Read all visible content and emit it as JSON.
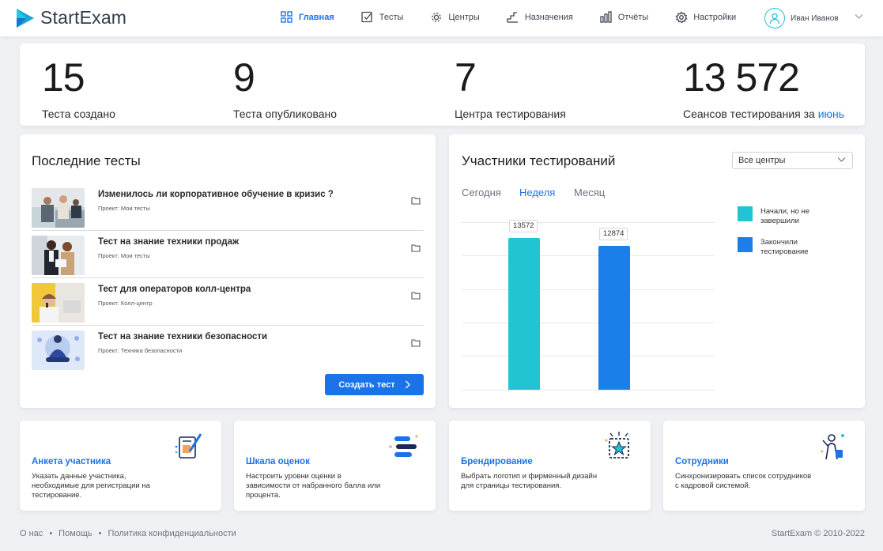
{
  "brand": {
    "name": "StartExam"
  },
  "nav": [
    {
      "label": "Главная",
      "icon": "grid-icon",
      "active": true
    },
    {
      "label": "Тесты",
      "icon": "checkbox-icon"
    },
    {
      "label": "Центры",
      "icon": "gear-icon"
    },
    {
      "label": "Назначения",
      "icon": "steps-icon"
    },
    {
      "label": "Отчёты",
      "icon": "bar-chart-icon"
    },
    {
      "label": "Настройки",
      "icon": "settings-icon"
    }
  ],
  "user": {
    "name": "Иван Иванов"
  },
  "stats": [
    {
      "value": "15",
      "label": "Теста создано"
    },
    {
      "value": "9",
      "label": "Теста опубликовано"
    },
    {
      "value": "7",
      "label": "Центра тестирования"
    },
    {
      "value": "13 572",
      "label": "Сеансов тестирования за",
      "link": "июнь"
    }
  ],
  "recent_tests": {
    "title": "Последние тесты",
    "items": [
      {
        "title": "Изменилось ли корпоративное обучение в кризис ?",
        "project": "Проект: Мои тесты"
      },
      {
        "title": "Тест на знание техники продаж",
        "project": "Проект: Мои тесты"
      },
      {
        "title": "Тест для операторов колл-центра",
        "project": "Проект: Колл-центр"
      },
      {
        "title": "Тест на знание техники безопасности",
        "project": "Проект: Техника безопасности"
      }
    ],
    "create_button": "Создать тест"
  },
  "participants": {
    "title": "Участники тестирований",
    "filter": "Все центры",
    "tabs": [
      "Сегодня",
      "Неделя",
      "Месяц"
    ],
    "active_tab": "Неделя",
    "legend": [
      "Начали, но не завершили",
      "Закончили тестирование"
    ],
    "colors": {
      "started": "#22c3d3",
      "finished": "#1a7fe8"
    }
  },
  "chart_data": {
    "type": "bar",
    "categories": [
      "Начали, но не завершили",
      "Закончили тестирование"
    ],
    "values": [
      13572,
      12874
    ],
    "ylim": [
      0,
      15000
    ],
    "grid": true,
    "legend": "right"
  },
  "features": [
    {
      "title": "Анкета участника",
      "desc": "Указать данные участника, необходимые для регистрации на тестирование.",
      "icon": "form-pen-icon"
    },
    {
      "title": "Шкала оценок",
      "desc": "Настроить уровни оценки в зависимости от набранного балла или процента.",
      "icon": "scale-bars-icon"
    },
    {
      "title": "Брендирование",
      "desc": "Выбрать логотип и фирменный дизайн для страницы тестирования.",
      "icon": "star-frame-icon"
    },
    {
      "title": "Сотрудники",
      "desc": "Синхронизировать список сотрудников с кадровой системой.",
      "icon": "employee-icon"
    }
  ],
  "footer": {
    "links": [
      "О нас",
      "Помощь",
      "Политика конфиденциальности"
    ],
    "copyright": "StartExam ©  2010-2022"
  }
}
